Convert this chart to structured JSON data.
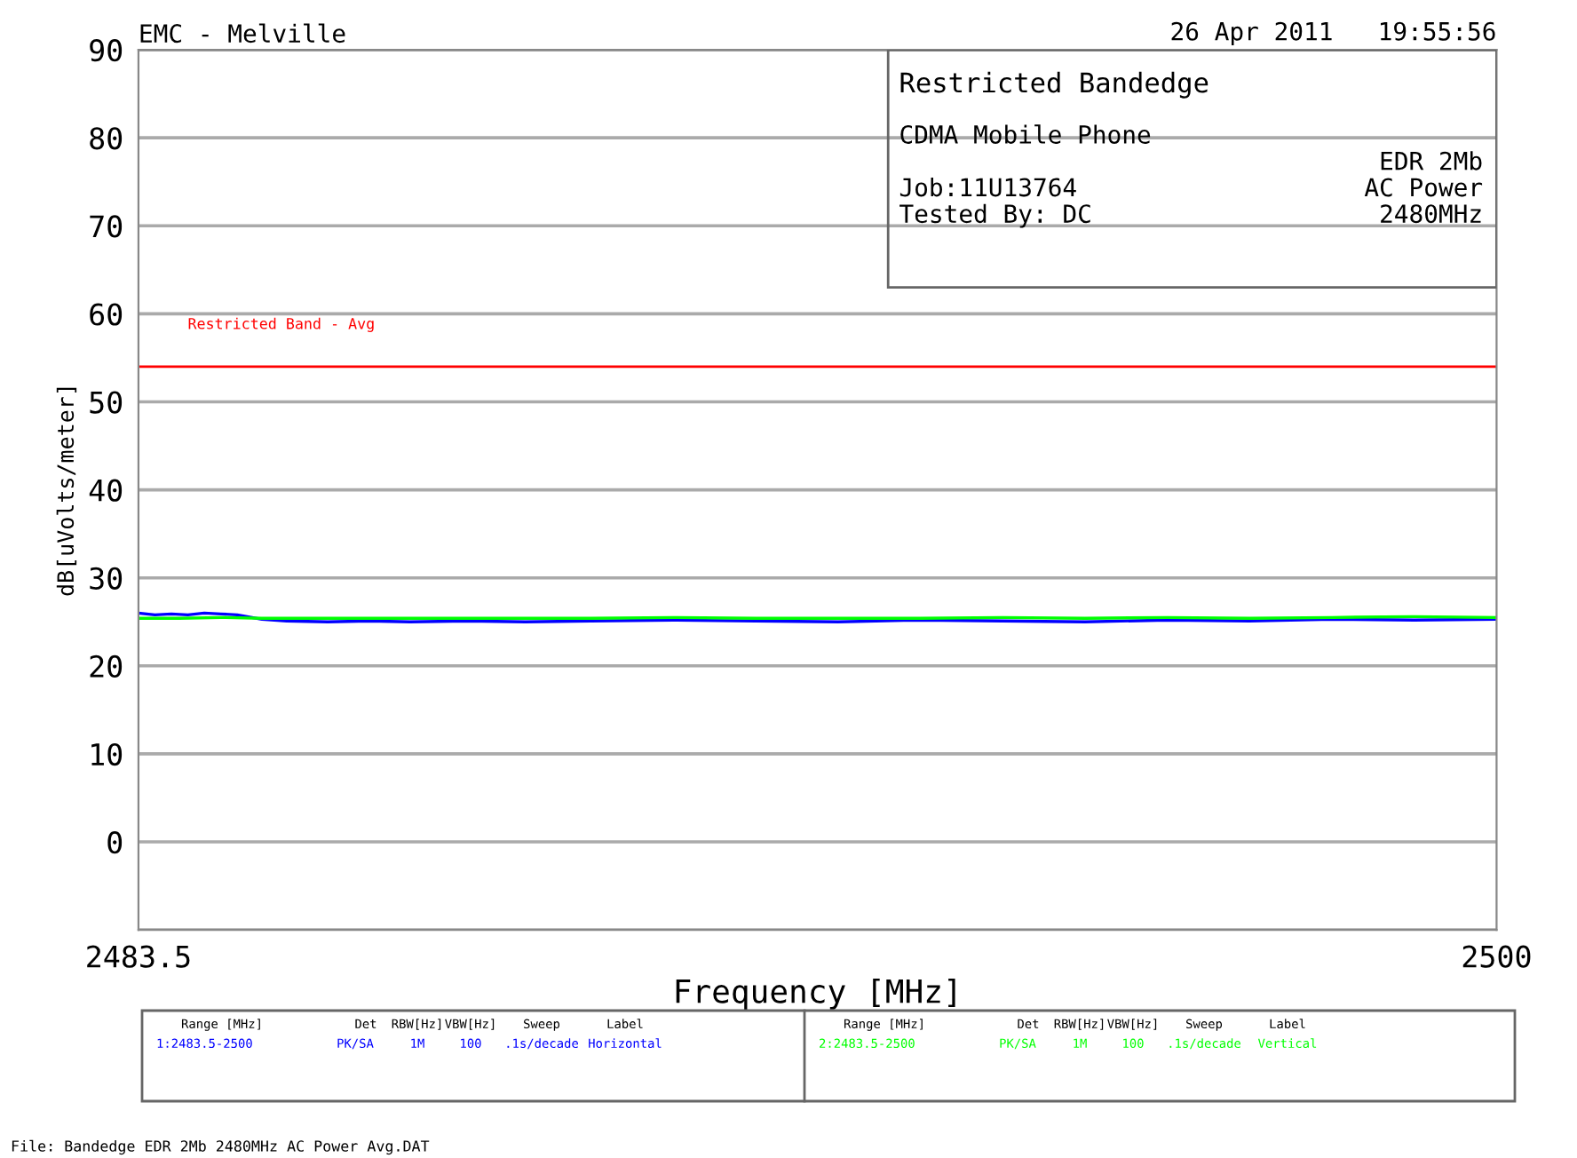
{
  "chart_data": {
    "type": "line",
    "title": "EMC - Melville",
    "xlabel": "Frequency [MHz]",
    "ylabel": "dB[uVolts/meter]",
    "xlim": [
      2483.5,
      2500
    ],
    "xticks": [
      2483.5,
      2500
    ],
    "ylim": [
      -10,
      90
    ],
    "yticks": [
      {
        "value": -10,
        "label": null
      },
      0,
      10,
      20,
      30,
      40,
      50,
      60,
      70,
      80,
      90
    ],
    "grid": "y",
    "legend": false,
    "marker": "none",
    "line_style": "solid",
    "series": [
      {
        "name": "Horizontal",
        "color": "#0000ff",
        "x": [
          2483.5,
          2483.7,
          2483.9,
          2484.1,
          2484.3,
          2484.5,
          2484.7,
          2485.0,
          2485.3,
          2485.8,
          2486.3,
          2486.8,
          2487.5,
          2488.2,
          2489,
          2490,
          2491,
          2492,
          2493,
          2494,
          2495,
          2496,
          2497,
          2498,
          2499,
          2500
        ],
        "values": [
          26.0,
          25.8,
          25.9,
          25.8,
          26.0,
          25.9,
          25.8,
          25.3,
          25.1,
          25.0,
          25.1,
          25.0,
          25.1,
          25.0,
          25.1,
          25.2,
          25.1,
          25.0,
          25.2,
          25.1,
          25.0,
          25.2,
          25.1,
          25.3,
          25.2,
          25.3
        ]
      },
      {
        "name": "Vertical",
        "color": "#00ff00",
        "x": [
          2483.5,
          2484.0,
          2484.5,
          2485.0,
          2486,
          2487,
          2488,
          2489,
          2490,
          2491,
          2492,
          2493,
          2494,
          2495,
          2496,
          2497,
          2498,
          2499,
          2500
        ],
        "values": [
          25.4,
          25.4,
          25.5,
          25.4,
          25.4,
          25.4,
          25.4,
          25.4,
          25.5,
          25.4,
          25.4,
          25.4,
          25.5,
          25.4,
          25.5,
          25.4,
          25.5,
          25.6,
          25.5
        ]
      }
    ],
    "ref_lines": [
      {
        "axis": "y",
        "value": 54,
        "label": "Restricted Band - Avg",
        "color": "#ff0000"
      }
    ],
    "annotations": [
      "26 Apr 2011   19:55:56",
      "Restricted Bandedge",
      "CDMA Mobile Phone",
      "EDR 2Mb",
      "Job:11U13764",
      "AC Power",
      "Tested By: DC",
      "2480MHz",
      "Range [MHz]",
      "Det",
      "RBW[Hz]",
      "VBW[Hz]",
      "Sweep",
      "Label",
      "1:2483.5-2500",
      "PK/SA",
      "1M",
      "100",
      ".1s/decade",
      "2:2483.5-2500",
      "PK/SA",
      "1M",
      "100",
      ".1s/decade",
      "File: Bandedge EDR 2Mb 2480MHz AC Power Avg.DAT"
    ]
  }
}
